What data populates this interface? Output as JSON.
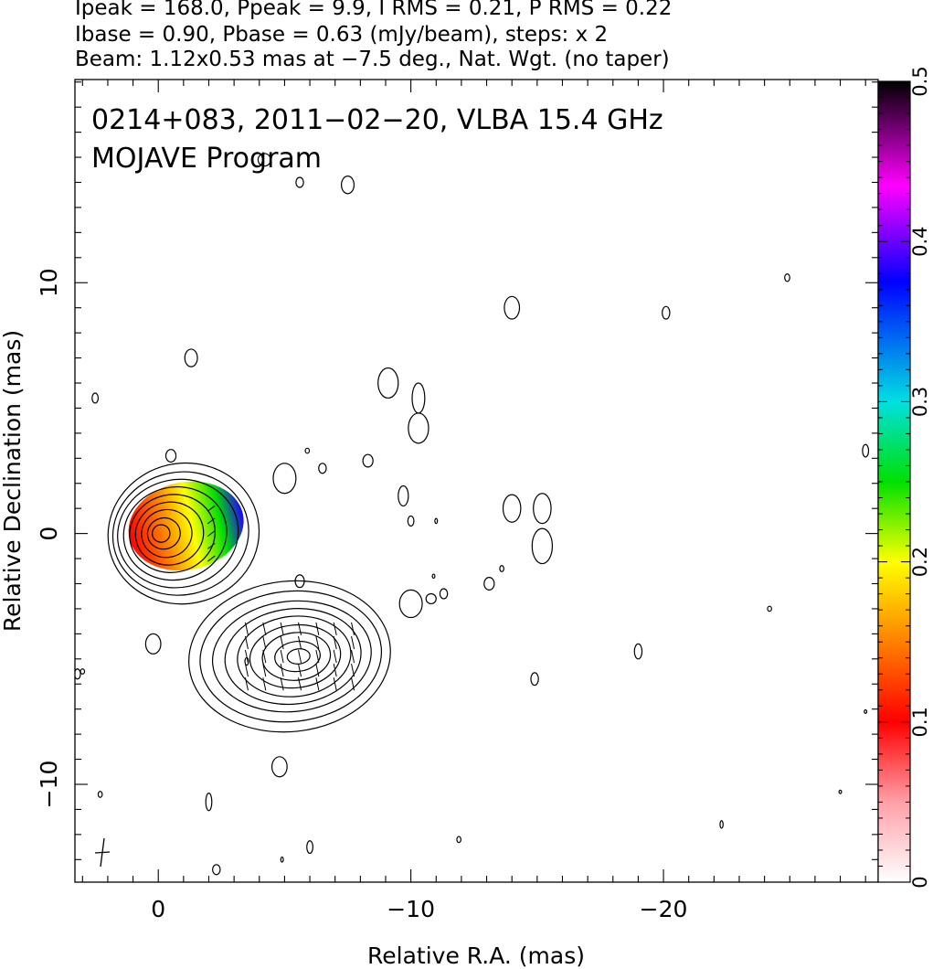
{
  "header": {
    "line1": "Ipeak = 168.0, Ppeak = 9.9, I RMS = 0.21, P RMS = 0.22",
    "line2": "Ibase = 0.90, Pbase = 0.63 (mJy/beam), steps: x 2",
    "line3": "Beam: 1.12x0.53 mas at −7.5 deg., Nat. Wgt. (no taper)"
  },
  "chart_data": {
    "type": "contour-image",
    "title": "0214+083, 2011−02−20, VLBA 15.4 GHz",
    "subtitle": "MOJAVE Program",
    "xlabel": "Relative R.A. (mas)",
    "ylabel": "Relative Declination (mas)",
    "xlim": [
      3.3,
      -28.5
    ],
    "ylim": [
      -13.9,
      18.1
    ],
    "x_ticks": [
      0,
      -10,
      -20
    ],
    "x_tick_labels": [
      "0",
      "−10",
      "−20"
    ],
    "y_ticks": [
      10,
      0,
      -10
    ],
    "y_tick_labels": [
      "10",
      "0",
      "−10"
    ],
    "colorbar": {
      "range": [
        0,
        0.5
      ],
      "ticks": [
        0,
        0.1,
        0.2,
        0.3,
        0.4,
        0.5
      ],
      "tick_labels": [
        "0",
        "0.1",
        "0.2",
        "0.3",
        "0.4",
        "0.5"
      ],
      "stops": [
        "#ffffff",
        "#ff9aa0",
        "#ff0000",
        "#ff8000",
        "#ffff00",
        "#00e000",
        "#00e0e0",
        "#0000ff",
        "#ff00ff",
        "#000000"
      ]
    },
    "core": {
      "x": 0,
      "y": 0,
      "contour_radii": [
        [
          3.0,
          2.8
        ],
        [
          2.7,
          2.45
        ],
        [
          2.4,
          2.15
        ],
        [
          2.05,
          1.85
        ],
        [
          1.7,
          1.55
        ],
        [
          1.35,
          1.25
        ],
        [
          1.0,
          0.95
        ],
        [
          0.65,
          0.62
        ],
        [
          0.35,
          0.35
        ]
      ]
    },
    "jet_component": {
      "x": -5.6,
      "y": -4.9,
      "contour_radii": [
        [
          4.0,
          3.0
        ],
        [
          3.6,
          2.6
        ],
        [
          3.15,
          2.2
        ],
        [
          2.7,
          1.9
        ],
        [
          2.25,
          1.6
        ],
        [
          1.8,
          1.25
        ],
        [
          1.35,
          0.95
        ],
        [
          0.9,
          0.6
        ],
        [
          0.45,
          0.3
        ]
      ]
    },
    "noise_islands": [
      [
        -4.2,
        14.9,
        0.25,
        0.25
      ],
      [
        -5.6,
        14.0,
        0.15,
        0.2
      ],
      [
        -7.5,
        13.9,
        0.25,
        0.35
      ],
      [
        -14.0,
        9.0,
        0.3,
        0.45
      ],
      [
        -20.1,
        8.8,
        0.15,
        0.25
      ],
      [
        -24.9,
        10.2,
        0.1,
        0.15
      ],
      [
        -1.3,
        7.0,
        0.25,
        0.35
      ],
      [
        2.5,
        5.4,
        0.12,
        0.2
      ],
      [
        -9.1,
        6.0,
        0.4,
        0.6
      ],
      [
        -10.3,
        5.4,
        0.25,
        0.6
      ],
      [
        -10.3,
        4.2,
        0.4,
        0.6
      ],
      [
        -5.9,
        3.3,
        0.08,
        0.1
      ],
      [
        -6.5,
        2.6,
        0.15,
        0.2
      ],
      [
        -8.3,
        2.9,
        0.2,
        0.25
      ],
      [
        -5.0,
        2.2,
        0.45,
        0.6
      ],
      [
        -0.5,
        3.1,
        0.2,
        0.25
      ],
      [
        -9.7,
        1.5,
        0.2,
        0.4
      ],
      [
        -10.0,
        0.5,
        0.12,
        0.2
      ],
      [
        -11.0,
        0.5,
        0.05,
        0.1
      ],
      [
        -14.0,
        1.0,
        0.35,
        0.55
      ],
      [
        -15.2,
        1.0,
        0.35,
        0.6
      ],
      [
        -15.2,
        -0.5,
        0.4,
        0.7
      ],
      [
        -28.0,
        3.3,
        0.12,
        0.25
      ],
      [
        -5.6,
        -1.9,
        0.18,
        0.25
      ],
      [
        -10.0,
        -2.8,
        0.45,
        0.55
      ],
      [
        -10.8,
        -2.6,
        0.2,
        0.2
      ],
      [
        -11.3,
        -2.4,
        0.15,
        0.2
      ],
      [
        -10.9,
        -1.7,
        0.05,
        0.08
      ],
      [
        -13.1,
        -2.0,
        0.2,
        0.25
      ],
      [
        -13.6,
        -1.4,
        0.08,
        0.12
      ],
      [
        0.2,
        -4.4,
        0.3,
        0.4
      ],
      [
        -3.5,
        -5.1,
        0.07,
        0.15
      ],
      [
        3.2,
        -5.6,
        0.12,
        0.2
      ],
      [
        -14.9,
        -5.8,
        0.15,
        0.25
      ],
      [
        -19.0,
        -4.7,
        0.15,
        0.3
      ],
      [
        -24.2,
        -3.0,
        0.08,
        0.1
      ],
      [
        -4.8,
        -9.3,
        0.3,
        0.4
      ],
      [
        -2.0,
        -10.7,
        0.12,
        0.35
      ],
      [
        2.3,
        -10.4,
        0.08,
        0.12
      ],
      [
        -6.0,
        -12.5,
        0.12,
        0.25
      ],
      [
        -4.9,
        -13.0,
        0.05,
        0.1
      ],
      [
        -2.3,
        -13.4,
        0.15,
        0.2
      ],
      [
        -11.9,
        -12.2,
        0.08,
        0.12
      ],
      [
        -22.3,
        -11.6,
        0.06,
        0.15
      ],
      [
        -27.0,
        -10.3,
        0.05,
        0.07
      ],
      [
        -28.0,
        -7.1,
        0.05,
        0.07
      ],
      [
        3.0,
        -5.5,
        0.08,
        0.1
      ]
    ]
  }
}
